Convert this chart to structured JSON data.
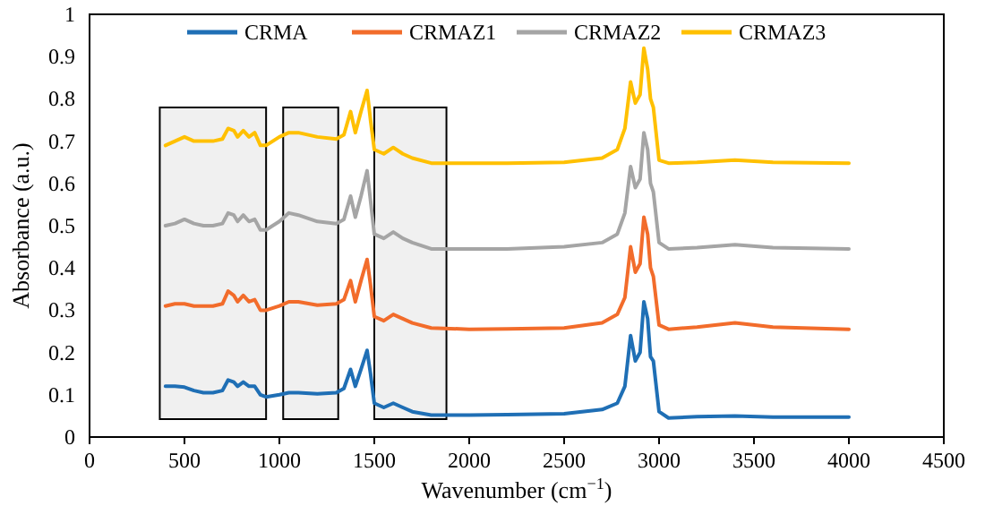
{
  "chart_data": {
    "type": "line",
    "xlabel": "Wavenumber (cm$^{−1}$)",
    "ylabel": "Absorbance (a.u.)",
    "x": [
      400,
      450,
      500,
      550,
      600,
      650,
      700,
      730,
      760,
      780,
      810,
      840,
      870,
      900,
      930,
      1000,
      1050,
      1100,
      1200,
      1300,
      1340,
      1375,
      1400,
      1430,
      1462,
      1480,
      1500,
      1550,
      1600,
      1650,
      1700,
      1800,
      2000,
      2200,
      2500,
      2700,
      2780,
      2820,
      2850,
      2875,
      2900,
      2920,
      2940,
      2955,
      2970,
      3000,
      3050,
      3200,
      3400,
      3600,
      4000
    ],
    "series": [
      {
        "name": "CRMA",
        "color": "#1f6fb5",
        "values": [
          0.12,
          0.12,
          0.118,
          0.11,
          0.105,
          0.105,
          0.11,
          0.135,
          0.13,
          0.12,
          0.13,
          0.12,
          0.12,
          0.1,
          0.095,
          0.1,
          0.105,
          0.105,
          0.102,
          0.105,
          0.115,
          0.16,
          0.12,
          0.16,
          0.205,
          0.15,
          0.08,
          0.07,
          0.08,
          0.07,
          0.06,
          0.052,
          0.052,
          0.053,
          0.055,
          0.065,
          0.08,
          0.12,
          0.24,
          0.18,
          0.2,
          0.32,
          0.28,
          0.19,
          0.18,
          0.06,
          0.045,
          0.048,
          0.05,
          0.047,
          0.047
        ]
      },
      {
        "name": "CRMAZ1",
        "color": "#f26c2b",
        "values": [
          0.31,
          0.315,
          0.315,
          0.31,
          0.31,
          0.31,
          0.315,
          0.345,
          0.335,
          0.32,
          0.335,
          0.32,
          0.325,
          0.3,
          0.3,
          0.31,
          0.32,
          0.32,
          0.312,
          0.315,
          0.325,
          0.37,
          0.32,
          0.37,
          0.42,
          0.36,
          0.285,
          0.275,
          0.29,
          0.28,
          0.27,
          0.258,
          0.255,
          0.256,
          0.258,
          0.27,
          0.29,
          0.33,
          0.45,
          0.39,
          0.41,
          0.52,
          0.48,
          0.4,
          0.38,
          0.265,
          0.255,
          0.26,
          0.27,
          0.26,
          0.255
        ]
      },
      {
        "name": "CRMAZ2",
        "color": "#a5a5a5",
        "values": [
          0.5,
          0.505,
          0.515,
          0.505,
          0.5,
          0.5,
          0.505,
          0.53,
          0.525,
          0.51,
          0.525,
          0.51,
          0.515,
          0.49,
          0.49,
          0.51,
          0.53,
          0.525,
          0.51,
          0.505,
          0.515,
          0.57,
          0.52,
          0.57,
          0.63,
          0.56,
          0.48,
          0.47,
          0.485,
          0.47,
          0.46,
          0.445,
          0.445,
          0.445,
          0.45,
          0.46,
          0.48,
          0.53,
          0.64,
          0.59,
          0.61,
          0.72,
          0.68,
          0.6,
          0.58,
          0.46,
          0.445,
          0.448,
          0.455,
          0.448,
          0.445
        ]
      },
      {
        "name": "CRMAZ3",
        "color": "#ffc000",
        "values": [
          0.69,
          0.7,
          0.71,
          0.7,
          0.7,
          0.7,
          0.705,
          0.73,
          0.725,
          0.71,
          0.725,
          0.71,
          0.72,
          0.69,
          0.69,
          0.71,
          0.72,
          0.72,
          0.71,
          0.705,
          0.715,
          0.77,
          0.72,
          0.77,
          0.82,
          0.75,
          0.68,
          0.67,
          0.685,
          0.67,
          0.66,
          0.648,
          0.648,
          0.648,
          0.65,
          0.66,
          0.68,
          0.73,
          0.84,
          0.79,
          0.81,
          0.92,
          0.87,
          0.8,
          0.78,
          0.655,
          0.648,
          0.65,
          0.655,
          0.65,
          0.648
        ]
      }
    ],
    "xlim": [
      0,
      4500
    ],
    "xticks": [
      0,
      500,
      1000,
      1500,
      2000,
      2500,
      3000,
      3500,
      4000,
      4500
    ],
    "ylim": [
      0,
      1
    ],
    "yticks": [
      0,
      0.1,
      0.2,
      0.3,
      0.4,
      0.5,
      0.6,
      0.7,
      0.8,
      0.9,
      1
    ],
    "bands": [
      {
        "axis": "x",
        "from": 370,
        "to": 930,
        "color": "#000000"
      },
      {
        "axis": "x",
        "from": 1020,
        "to": 1310,
        "color": "#000000"
      },
      {
        "axis": "x",
        "from": 1500,
        "to": 1880,
        "color": "#000000"
      }
    ],
    "grid": false,
    "legend": "top",
    "marker": "none",
    "line_style": "solid"
  }
}
